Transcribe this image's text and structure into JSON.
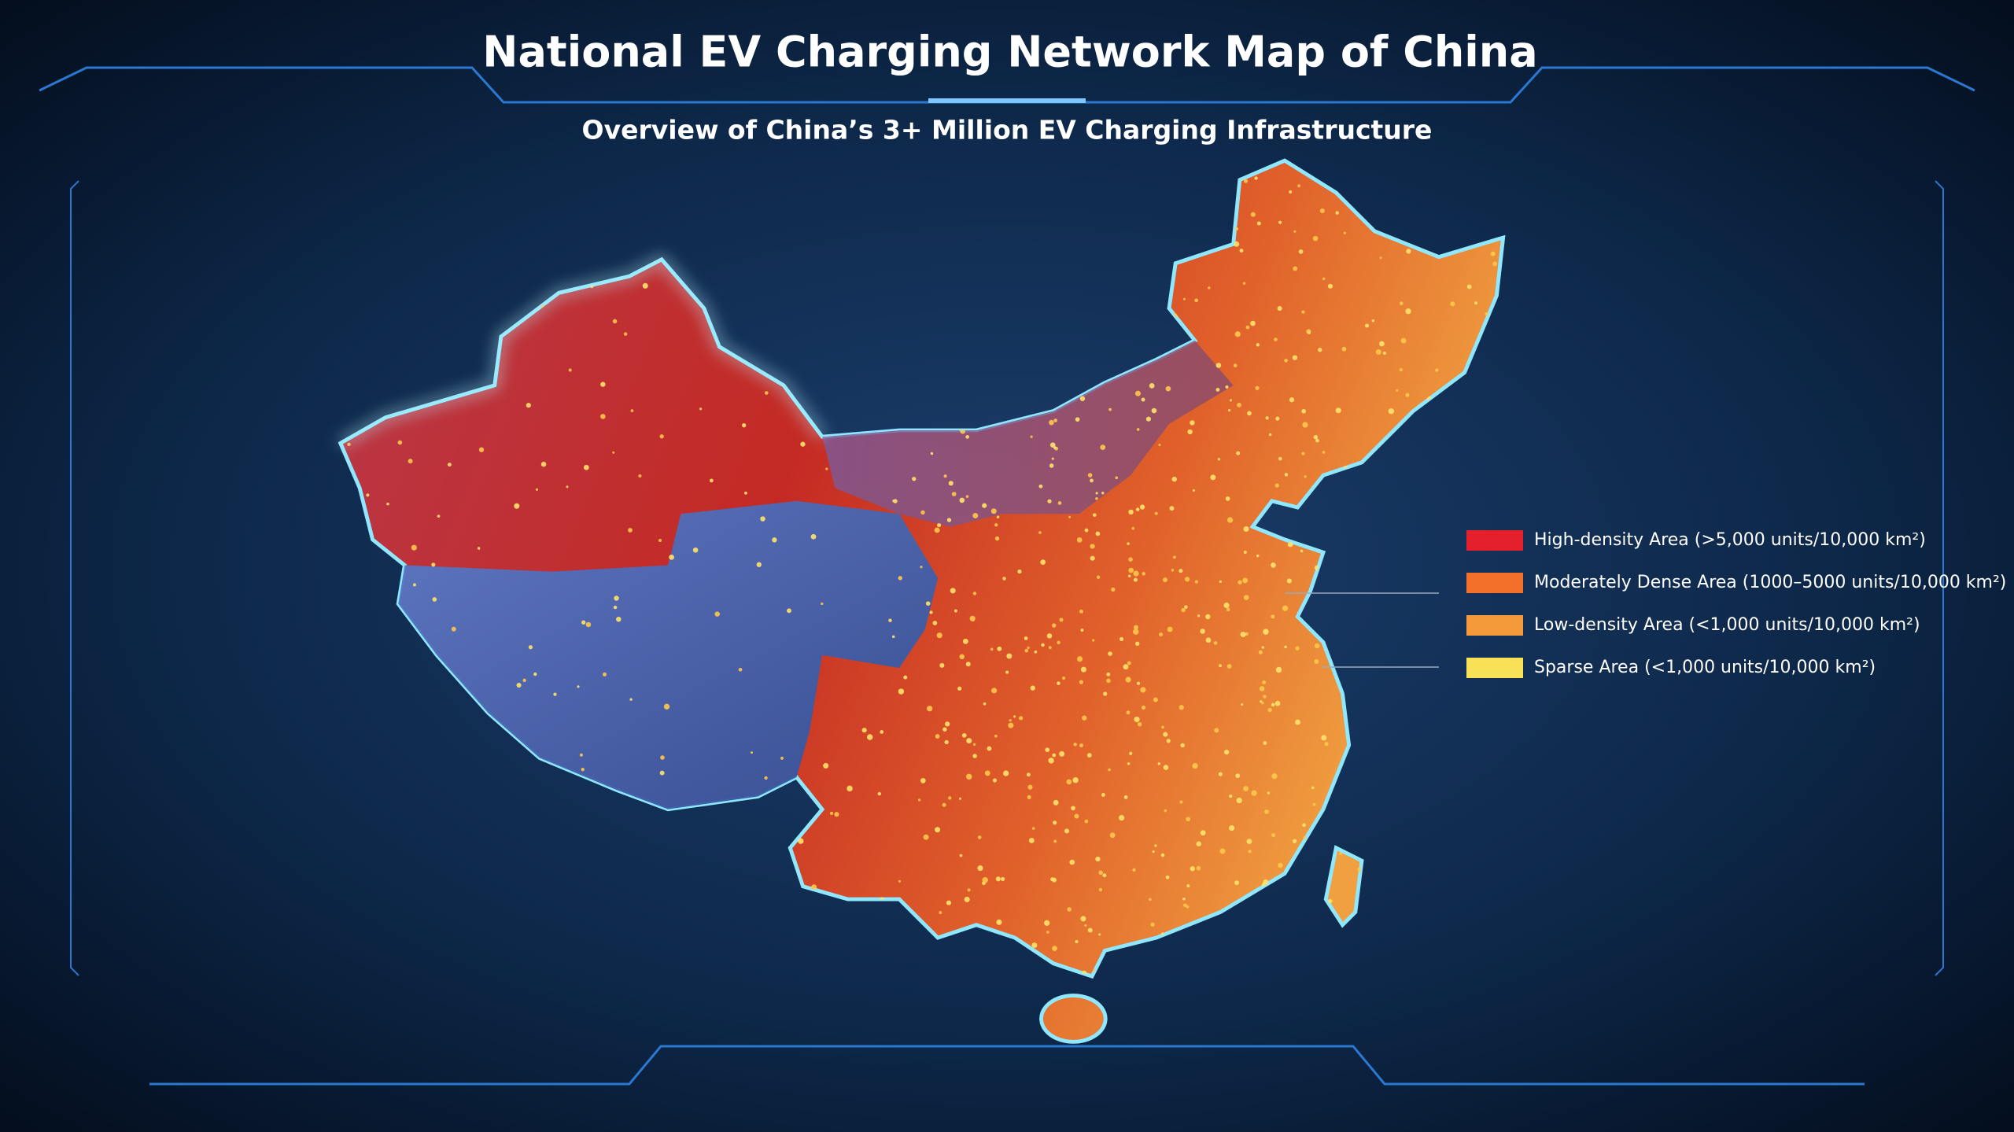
{
  "header": {
    "title": "National EV Charging Network Map of China",
    "subtitle": "Overview of China’s 3+ Million EV Charging Infrastructure"
  },
  "legend": {
    "items": [
      {
        "label": "High-density Area (>5,000 units/10,000 km²)",
        "color": "#e3202c"
      },
      {
        "label": "Moderately Dense Area (1000–5000 units/10,000 km²)",
        "color": "#f2702a"
      },
      {
        "label": "Low-density Area (<1,000 units/10,000 km²)",
        "color": "#f59a3a"
      },
      {
        "label": "Sparse Area (<1,000 units/10,000 km²)",
        "color": "#f7e257"
      }
    ]
  }
}
